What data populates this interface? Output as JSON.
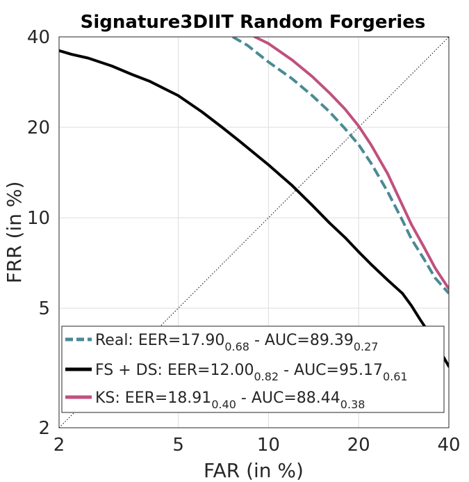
{
  "chart_data": {
    "type": "line",
    "title": "Signature3DIIT Random Forgeries",
    "xlabel": "FAR (in %)",
    "ylabel": "FRR (in %)",
    "xscale": "log",
    "yscale": "log",
    "xlim": [
      2,
      40
    ],
    "ylim": [
      2,
      40
    ],
    "xticks": [
      2,
      5,
      10,
      20,
      40
    ],
    "yticks": [
      2,
      5,
      10,
      20,
      40
    ],
    "grid": true,
    "legend_position": "bottom-right",
    "reference_line": {
      "x": [
        2,
        40
      ],
      "y": [
        2,
        40
      ],
      "style": "dotted"
    },
    "series": [
      {
        "name": "Real",
        "legend": {
          "prefix": "Real: EER=",
          "eer": "17.90",
          "eer_sub": "0.68",
          "mid": " - AUC=",
          "auc": "89.39",
          "auc_sub": "0.27"
        },
        "color": "#4a8a94",
        "style": "dashed",
        "x": [
          7.6,
          8.5,
          10,
          12,
          14,
          16,
          18,
          20,
          22,
          25,
          28,
          30,
          33,
          36,
          40
        ],
        "y": [
          40,
          37.5,
          33,
          29,
          25.5,
          22.5,
          19.8,
          17.5,
          15.2,
          12.2,
          9.8,
          8.5,
          7.3,
          6.3,
          5.6
        ]
      },
      {
        "name": "FS + DS",
        "legend": {
          "prefix": "FS + DS: EER=",
          "eer": "12.00",
          "eer_sub": "0.82",
          "mid": " - AUC=",
          "auc": "95.17",
          "auc_sub": "0.61"
        },
        "color": "#000000",
        "style": "solid",
        "x": [
          2,
          2.2,
          2.5,
          3,
          3.5,
          4,
          5,
          6,
          7,
          8,
          10,
          12,
          14,
          16,
          18,
          20,
          22,
          25,
          28,
          30,
          32,
          34,
          36,
          38,
          40
        ],
        "y": [
          36,
          35,
          34,
          32,
          30,
          28.5,
          25.5,
          22.5,
          20,
          18,
          15,
          12.8,
          11,
          9.6,
          8.6,
          7.7,
          7.0,
          6.2,
          5.6,
          5.1,
          4.6,
          4.2,
          3.8,
          3.5,
          3.2
        ]
      },
      {
        "name": "KS",
        "legend": {
          "prefix": "KS: EER=",
          "eer": "18.91",
          "eer_sub": "0.40",
          "mid": " - AUC=",
          "auc": "88.44",
          "auc_sub": "0.38"
        },
        "color": "#c0517e",
        "style": "solid",
        "x": [
          9,
          10,
          12,
          14,
          16,
          18,
          20,
          22,
          25,
          28,
          30,
          33,
          36,
          40
        ],
        "y": [
          40,
          38,
          33.5,
          29.5,
          26,
          23,
          20.2,
          17.5,
          14,
          11,
          9.5,
          8,
          6.8,
          5.8
        ]
      }
    ]
  }
}
